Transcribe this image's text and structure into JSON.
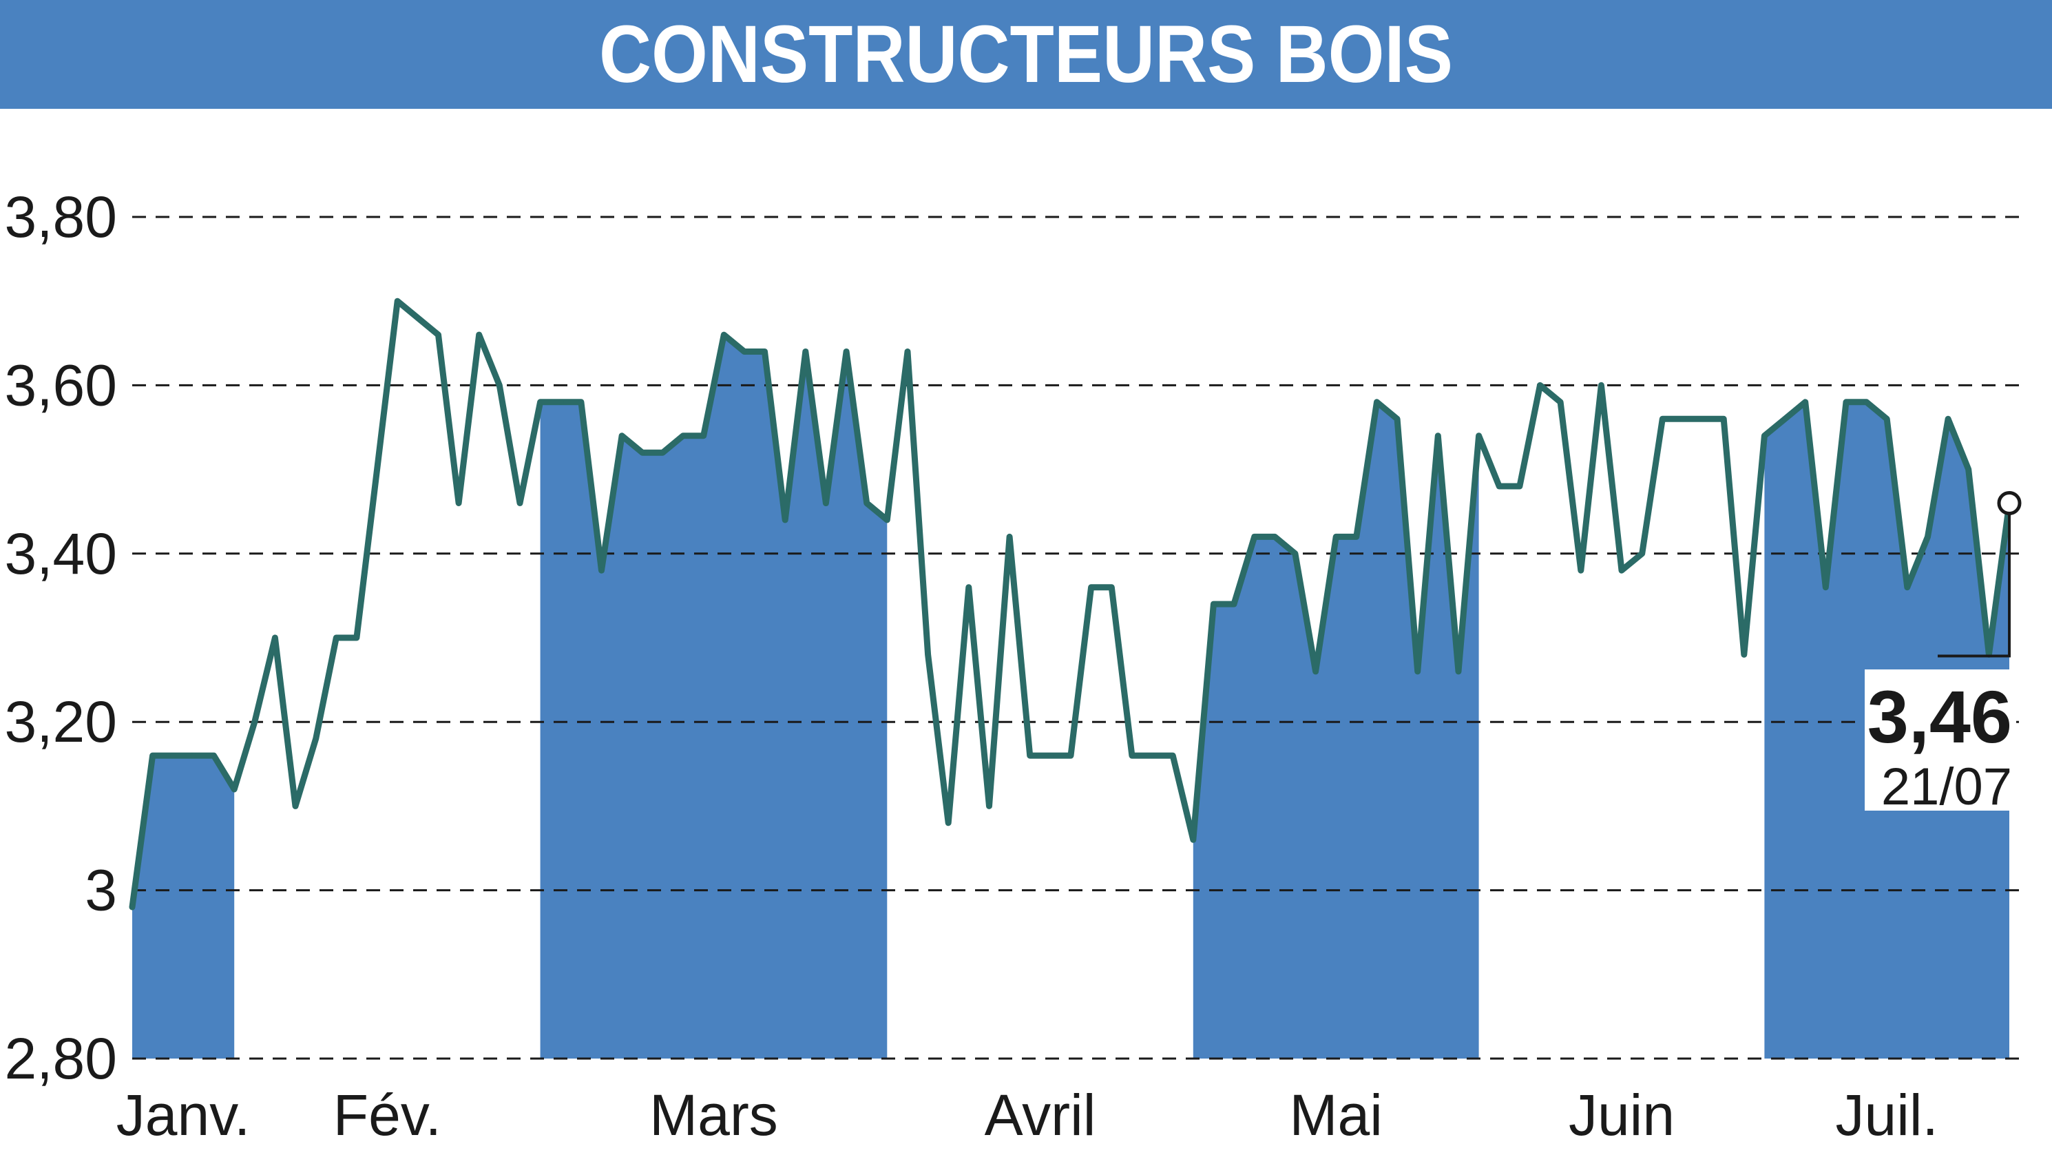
{
  "header": {
    "title": "CONSTRUCTEURS BOIS"
  },
  "colors": {
    "header_bg": "#4a82c0",
    "band": "#4a82c0",
    "line": "#2b6b67",
    "grid": "#1a1a1a",
    "text": "#1a1a1a"
  },
  "last": {
    "value_label": "3,46",
    "date_label": "21/07"
  },
  "chart_data": {
    "type": "line",
    "title": "CONSTRUCTEURS BOIS",
    "xlabel": "",
    "ylabel": "",
    "ylim": [
      2.8,
      3.8
    ],
    "grid": "horizontal dashed",
    "y_ticks": [
      {
        "value": 3.8,
        "label": "3,80"
      },
      {
        "value": 3.6,
        "label": "3,60"
      },
      {
        "value": 3.4,
        "label": "3,40"
      },
      {
        "value": 3.2,
        "label": "3,20"
      },
      {
        "value": 3.0,
        "label": "3"
      },
      {
        "value": 2.8,
        "label": "2,80"
      }
    ],
    "months": [
      {
        "label": "Janv.",
        "start": 0,
        "end": 5,
        "shaded": true
      },
      {
        "label": "Fév.",
        "start": 5,
        "end": 20,
        "shaded": false
      },
      {
        "label": "Mars",
        "start": 20,
        "end": 37,
        "shaded": true
      },
      {
        "label": "Avril",
        "start": 37,
        "end": 52,
        "shaded": false
      },
      {
        "label": "Mai",
        "start": 52,
        "end": 66,
        "shaded": true
      },
      {
        "label": "Juin",
        "start": 66,
        "end": 80,
        "shaded": false
      },
      {
        "label": "Juil.",
        "start": 80,
        "end": 92,
        "shaded": true
      }
    ],
    "series": [
      {
        "values": [
          2.98,
          3.16,
          3.16,
          3.16,
          3.16,
          3.12,
          3.2,
          3.3,
          3.1,
          3.18,
          3.3,
          3.3,
          3.5,
          3.7,
          3.68,
          3.66,
          3.46,
          3.66,
          3.6,
          3.46,
          3.58,
          3.58,
          3.58,
          3.38,
          3.54,
          3.52,
          3.52,
          3.54,
          3.54,
          3.66,
          3.64,
          3.64,
          3.44,
          3.64,
          3.46,
          3.64,
          3.46,
          3.44,
          3.64,
          3.28,
          3.08,
          3.36,
          3.1,
          3.42,
          3.16,
          3.16,
          3.16,
          3.36,
          3.36,
          3.16,
          3.16,
          3.16,
          3.06,
          3.34,
          3.34,
          3.42,
          3.42,
          3.4,
          3.26,
          3.42,
          3.42,
          3.58,
          3.56,
          3.26,
          3.54,
          3.26,
          3.54,
          3.48,
          3.48,
          3.6,
          3.58,
          3.38,
          3.6,
          3.38,
          3.4,
          3.56,
          3.56,
          3.56,
          3.56,
          3.28,
          3.54,
          3.56,
          3.58,
          3.36,
          3.58,
          3.58,
          3.56,
          3.36,
          3.42,
          3.56,
          3.5,
          3.28,
          3.46
        ]
      }
    ],
    "last_value": 3.46,
    "last_date": "21/07"
  }
}
